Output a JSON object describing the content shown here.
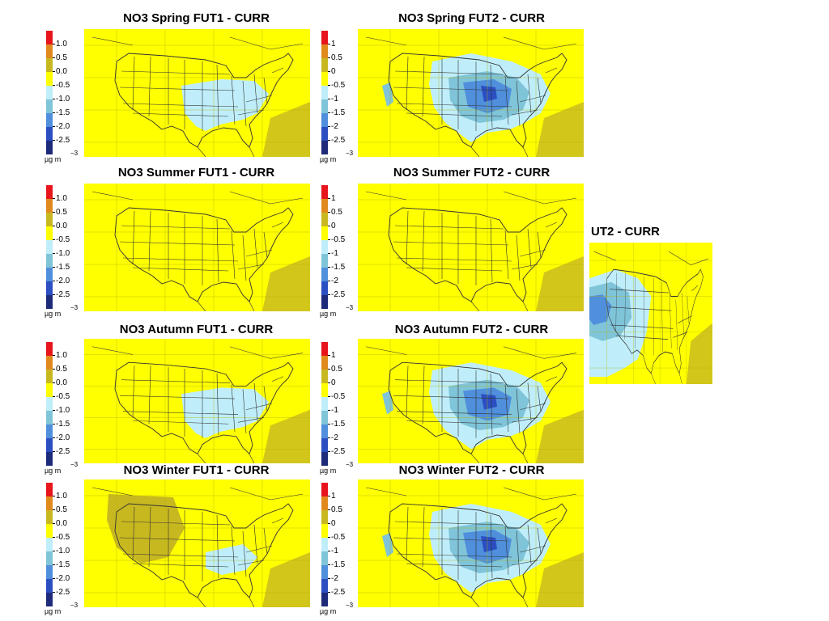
{
  "colors": {
    "map_background": "#ffff00",
    "legend": [
      "#e8141c",
      "#e08a1e",
      "#c8b820",
      "#ffff00",
      "#bfeefa",
      "#7fc4d9",
      "#4f8fdc",
      "#2b4fc2",
      "#1e2a7a"
    ]
  },
  "legend": {
    "labels_decimal": [
      "1.0",
      "0.5",
      "0.0",
      "-0.5",
      "-1.0",
      "-1.5",
      "-2.0",
      "-2.5"
    ],
    "labels_integer": [
      "1",
      "0.5",
      "0",
      "-0.5",
      "-1",
      "-1.5",
      "-2",
      "-2.5"
    ],
    "unit": "µg m",
    "unit_exp": "−3"
  },
  "panels": [
    {
      "id": "spring-fut1",
      "title": "NO3 Spring FUT1 - CURR",
      "labels": "decimal",
      "anomaly": "light"
    },
    {
      "id": "spring-fut2",
      "title": "NO3 Spring FUT2 - CURR",
      "labels": "integer",
      "anomaly": "strong"
    },
    {
      "id": "summer-fut1",
      "title": "NO3 Summer FUT1 - CURR",
      "labels": "decimal",
      "anomaly": "none"
    },
    {
      "id": "summer-fut2",
      "title": "NO3 Summer FUT2 - CURR",
      "labels": "integer",
      "anomaly": "none"
    },
    {
      "id": "autumn-fut1",
      "title": "NO3 Autumn FUT1 - CURR",
      "labels": "decimal",
      "anomaly": "light"
    },
    {
      "id": "autumn-fut2",
      "title": "NO3 Autumn FUT2 - CURR",
      "labels": "integer",
      "anomaly": "strong"
    },
    {
      "id": "winter-fut1",
      "title": "NO3 Winter FUT1 - CURR",
      "labels": "decimal",
      "anomaly": "olive"
    },
    {
      "id": "winter-fut2",
      "title": "NO3 Winter FUT2 - CURR",
      "labels": "integer",
      "anomaly": "strong"
    }
  ],
  "partial_panel": {
    "title": "UT2 - CURR"
  }
}
